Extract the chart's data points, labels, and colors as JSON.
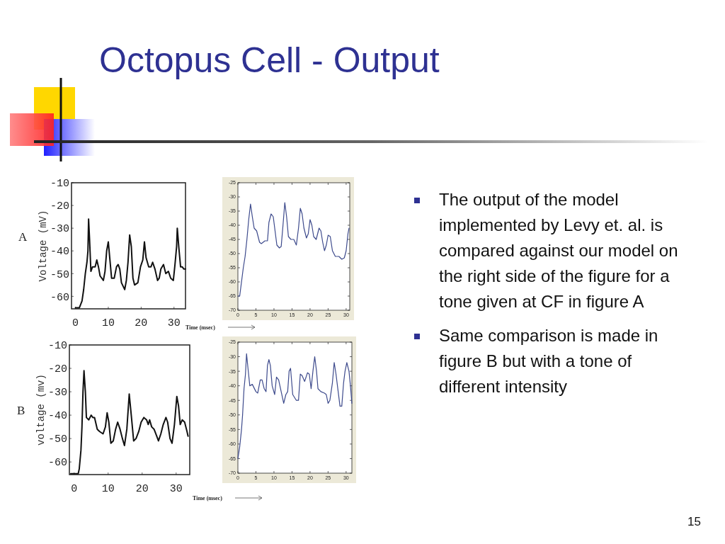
{
  "chart_data": [
    {
      "type": "line",
      "ylabel": "Voltage (mV)",
      "annotations": [
        "A"
      ],
      "xlim": [
        -1.2,
        33.5
      ],
      "ylim": [
        -65.5,
        -10
      ],
      "xticks": [
        0,
        10,
        20,
        30
      ],
      "yticks": [
        -10,
        -20,
        -30,
        -40,
        -50,
        -60
      ],
      "series": [
        {
          "color": "#111111",
          "x": [
            0,
            1.2,
            2,
            2.5,
            3,
            3.5,
            3.8,
            4,
            4.3,
            4.7,
            5.2,
            6,
            6.5,
            7,
            7.5,
            8.5,
            9,
            9.5,
            10,
            10.5,
            11,
            11.8,
            12.5,
            13,
            13.5,
            14,
            15,
            15.5,
            16,
            16.5,
            17,
            17.5,
            18,
            19,
            19.8,
            20.5,
            21,
            21.5,
            22.3,
            23,
            23.5,
            24.2,
            25,
            25.5,
            26,
            26.8,
            27.5,
            28.3,
            29,
            29.8,
            30.3,
            30.8,
            31,
            31.5,
            32,
            32.5,
            33,
            33.5
          ],
          "values": [
            -65,
            -65,
            -62,
            -57,
            -50,
            -45,
            -40,
            -26,
            -35,
            -49,
            -47,
            -47,
            -44,
            -47,
            -51,
            -53,
            -49,
            -40,
            -36,
            -44,
            -52,
            -52,
            -47,
            -46,
            -48,
            -54,
            -57,
            -53,
            -45,
            -33,
            -38,
            -52,
            -55,
            -54,
            -47,
            -44,
            -36,
            -43,
            -47,
            -47,
            -45,
            -48,
            -53,
            -52,
            -48,
            -46,
            -50,
            -49,
            -52,
            -53,
            -46,
            -38,
            -30,
            -39,
            -47,
            -47,
            -48,
            -48
          ]
        }
      ]
    },
    {
      "type": "line",
      "xlabel": "Time (msec)",
      "xlim": [
        0,
        31
      ],
      "ylim": [
        -70,
        -25
      ],
      "xticks": [
        0,
        5,
        10,
        15,
        20,
        25,
        30
      ],
      "yticks": [
        -25,
        -30,
        -35,
        -40,
        -45,
        -50,
        -55,
        -60,
        -65,
        -70
      ],
      "series": [
        {
          "color": "#3d4a8c",
          "x": [
            0,
            0.5,
            1,
            1.5,
            2,
            2.5,
            3,
            3.5,
            4,
            4.5,
            5.2,
            6,
            6.5,
            7.5,
            8.2,
            8.6,
            9.2,
            9.8,
            10.3,
            10.8,
            11.5,
            12,
            12.5,
            13,
            13.5,
            14,
            14.7,
            15.5,
            16.2,
            16.8,
            17.3,
            17.8,
            18.3,
            19,
            19.5,
            20,
            20.5,
            21,
            21.7,
            22.5,
            23,
            23.5,
            24,
            24.5,
            25,
            25.6,
            26.2,
            27,
            28,
            28.8,
            29.5,
            30,
            30.5,
            30.8
          ],
          "values": [
            -65,
            -65,
            -60,
            -55,
            -51,
            -45,
            -38,
            -32.5,
            -37,
            -41,
            -42,
            -46,
            -46.5,
            -45.5,
            -45.5,
            -39,
            -36,
            -37,
            -42,
            -47,
            -48,
            -47.5,
            -40,
            -32,
            -37,
            -44,
            -45,
            -45,
            -47,
            -41,
            -34,
            -36,
            -41,
            -44.5,
            -43,
            -38,
            -40,
            -44,
            -45,
            -41,
            -42,
            -46,
            -49,
            -47,
            -43.5,
            -44,
            -49,
            -51,
            -51,
            -52,
            -51.5,
            -49,
            -43,
            -41
          ]
        }
      ]
    },
    {
      "type": "line",
      "ylabel": "voltage (mv)",
      "annotations": [
        "B"
      ],
      "xlim": [
        -1.4,
        34
      ],
      "ylim": [
        -65.4,
        -10
      ],
      "xticks": [
        0,
        10,
        20,
        30
      ],
      "yticks": [
        -10,
        -20,
        -30,
        -40,
        -50,
        -60
      ],
      "series": [
        {
          "color": "#111111",
          "x": [
            -1,
            1.2,
            1.5,
            2,
            2.3,
            2.6,
            2.9,
            3.3,
            3.6,
            4.3,
            5,
            5.5,
            6,
            6.8,
            7.5,
            8.5,
            9.2,
            9.7,
            10.2,
            10.8,
            11.5,
            12.2,
            12.8,
            13.5,
            14.2,
            14.8,
            15.5,
            16.2,
            16.8,
            17.5,
            18.2,
            19,
            19.7,
            20.5,
            21.3,
            21.8,
            22.2,
            22.8,
            23.5,
            24.3,
            24.8,
            25.5,
            26.2,
            27,
            27.5,
            28.2,
            28.8,
            29.5,
            30.2,
            30.7,
            31.2,
            31.8,
            32.5,
            33.2,
            33.5
          ],
          "values": [
            -65,
            -65,
            -63,
            -55,
            -45,
            -30,
            -21,
            -30,
            -41,
            -42,
            -40,
            -41,
            -41,
            -46,
            -47,
            -48,
            -45,
            -39,
            -43,
            -52,
            -51,
            -46,
            -43,
            -46,
            -50,
            -53,
            -46,
            -31,
            -40,
            -51,
            -50,
            -47,
            -43,
            -41,
            -42,
            -44,
            -42,
            -45,
            -46,
            -49,
            -51,
            -48,
            -44,
            -41,
            -43,
            -50,
            -52,
            -44,
            -32,
            -36,
            -44,
            -42,
            -43,
            -47,
            -49
          ]
        }
      ]
    },
    {
      "type": "line",
      "xlabel": "Time (msec)",
      "xlim": [
        0,
        31.6
      ],
      "ylim": [
        -70,
        -25
      ],
      "xticks": [
        0,
        5,
        10,
        15,
        20,
        25,
        30
      ],
      "yticks": [
        -25,
        -30,
        -35,
        -40,
        -45,
        -50,
        -55,
        -60,
        -65,
        -70
      ],
      "series": [
        {
          "color": "#3d4a8c",
          "x": [
            0,
            0.5,
            1,
            1.3,
            1.7,
            2.1,
            2.4,
            2.8,
            3.3,
            4,
            5,
            5.5,
            6.2,
            6.7,
            7.3,
            7.8,
            8.2,
            8.6,
            9,
            9.5,
            10.2,
            10.7,
            11.3,
            12,
            12.7,
            13.3,
            13.8,
            14.2,
            14.6,
            15.2,
            16.2,
            16.8,
            17.3,
            17.8,
            18.5,
            19.3,
            19.8,
            20.3,
            20.8,
            21.3,
            21.8,
            22.2,
            23,
            24,
            24.5,
            25,
            25.5,
            26.2,
            26.7,
            27.2,
            27.8,
            28.3,
            28.8,
            29.3,
            29.7,
            30.2,
            30.8,
            31.2,
            31.6
          ],
          "values": [
            -65,
            -61,
            -55,
            -50,
            -41,
            -36,
            -29,
            -34,
            -40,
            -39.5,
            -42,
            -42.5,
            -38,
            -38,
            -41,
            -42,
            -33,
            -31,
            -33,
            -40,
            -43,
            -37,
            -38,
            -42,
            -46,
            -43,
            -42,
            -35,
            -34,
            -43,
            -45,
            -45,
            -36,
            -36.5,
            -38.5,
            -35.5,
            -36,
            -41,
            -35,
            -30,
            -35,
            -41,
            -42,
            -42.5,
            -43,
            -46,
            -45,
            -39,
            -32,
            -36,
            -42,
            -47,
            -47,
            -39,
            -35,
            -32,
            -35,
            -40,
            -46
          ]
        }
      ]
    },
    {
      "type": "other",
      "title": "Octopus Cell - Output",
      "annotations": [
        "The output of the model implemented by Levy et. al. is compared against our model on the right side of the figure for a tone given at CF in figure A",
        "Same comparison is made in figure B but with a tone of different intensity",
        "15"
      ]
    }
  ]
}
